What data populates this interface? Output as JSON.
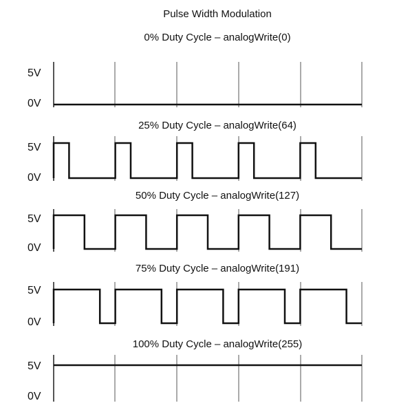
{
  "title": "Pulse Width Modulation",
  "voltage_high_label": "5V",
  "voltage_low_label": "0V",
  "waveform_color": "#111111",
  "gridline_color": "#555555",
  "periods": 5,
  "panels": [
    {
      "label": "0% Duty Cycle – analogWrite(0)",
      "duty_percent": 0
    },
    {
      "label": "25% Duty Cycle – analogWrite(64)",
      "duty_percent": 25
    },
    {
      "label": "50% Duty Cycle – analogWrite(127)",
      "duty_percent": 50
    },
    {
      "label": "75% Duty Cycle – analogWrite(191)",
      "duty_percent": 75
    },
    {
      "label": "100% Duty Cycle – analogWrite(255)",
      "duty_percent": 100
    }
  ]
}
